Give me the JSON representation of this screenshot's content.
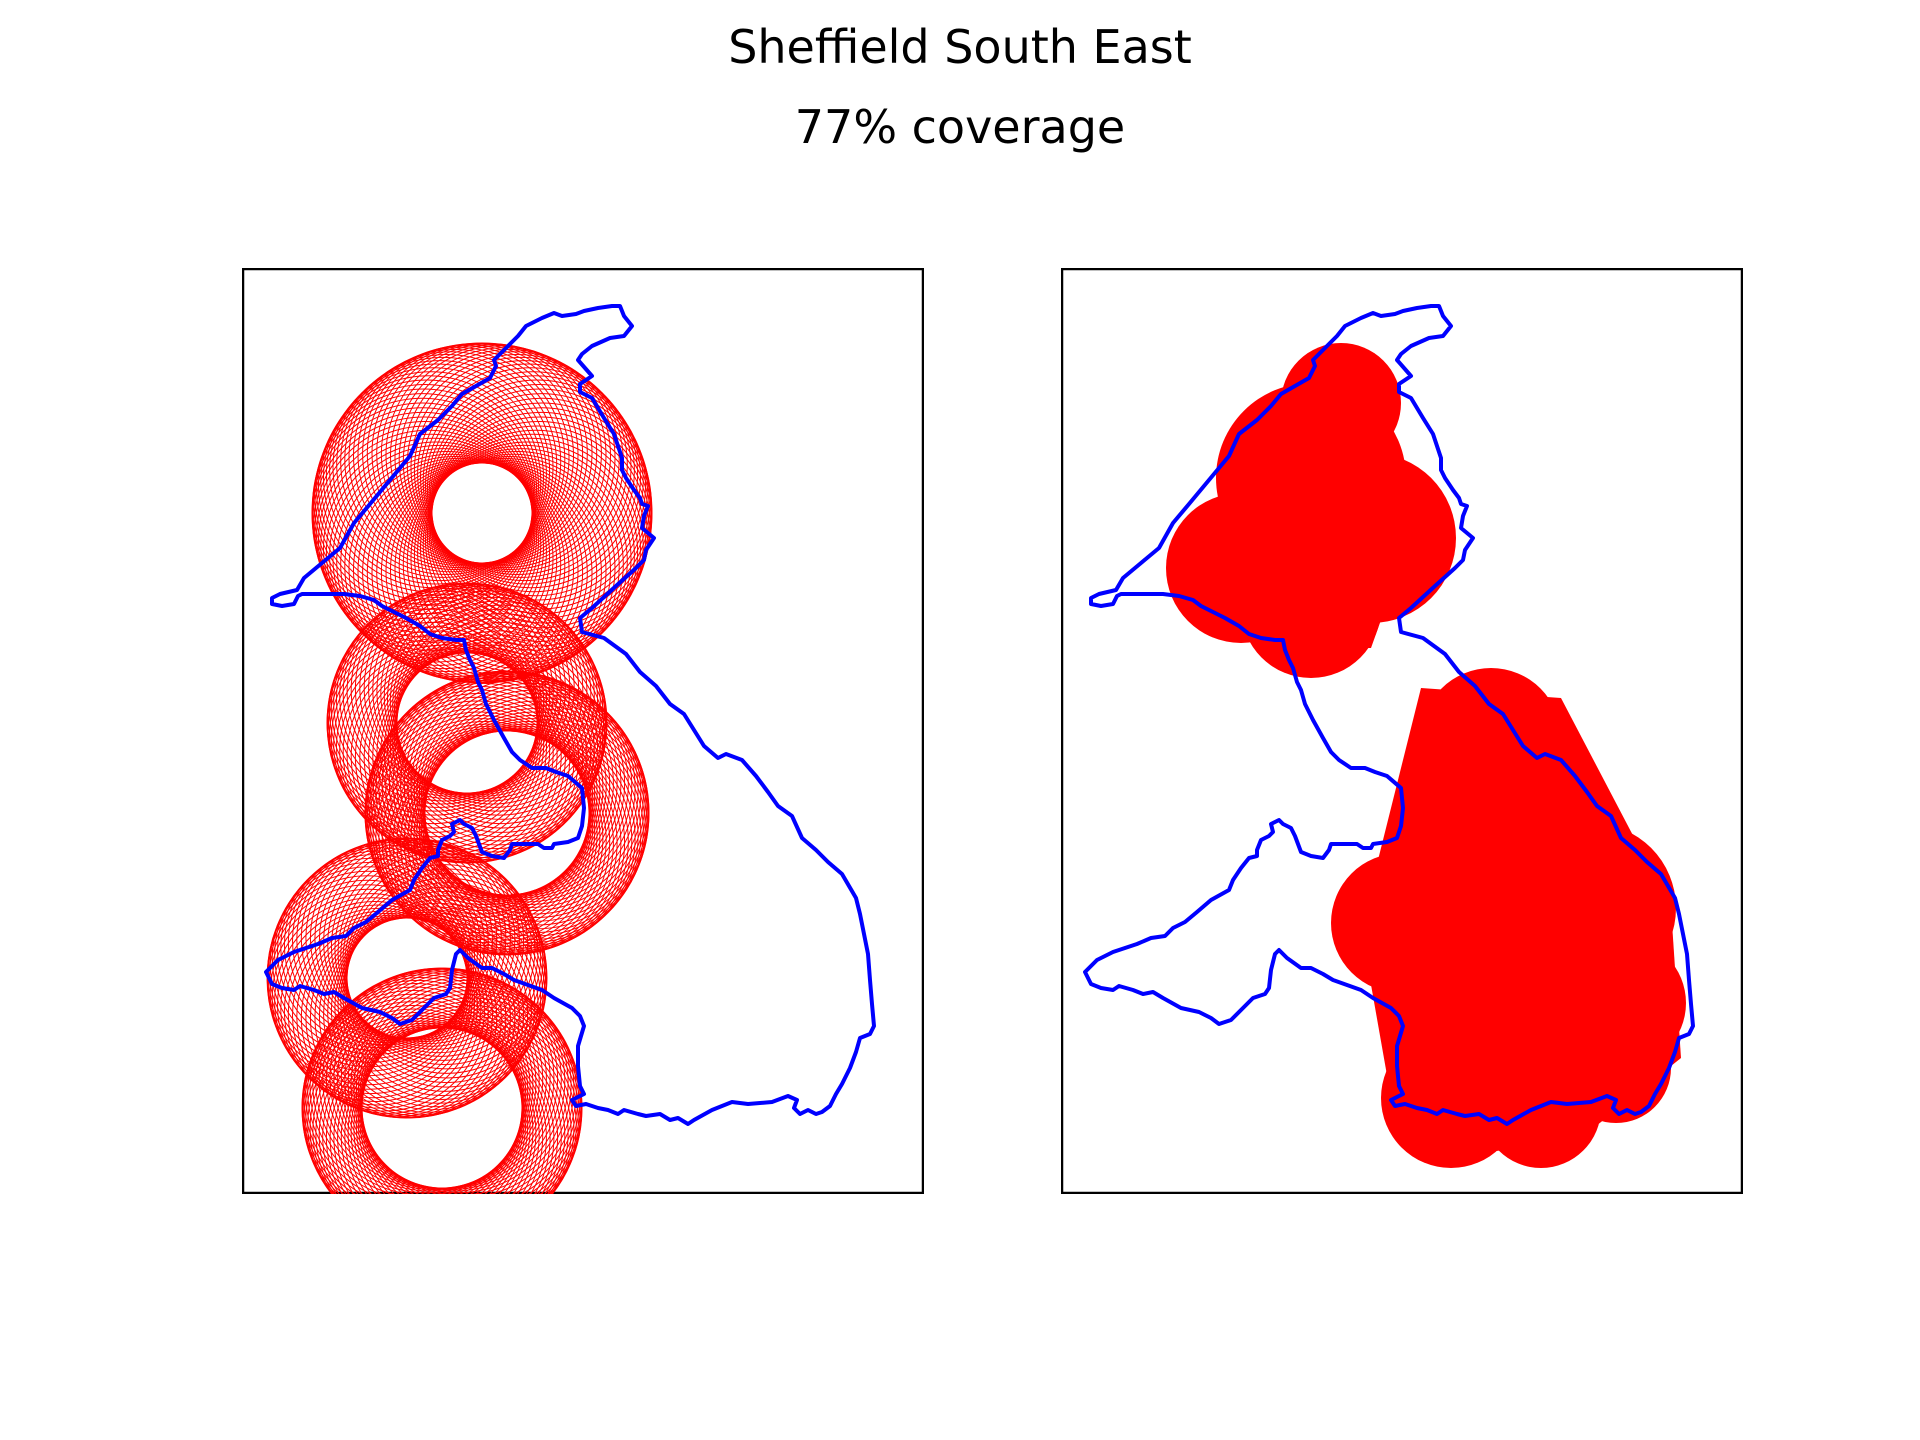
{
  "figure": {
    "title": "Sheffield South East",
    "subtitle": "77% coverage"
  },
  "colors": {
    "boundary": "#0000ff",
    "coverage": "#ff0000",
    "frame": "#000000",
    "background": "#ffffff"
  },
  "panels": [
    {
      "name": "coverage-circles-panel",
      "style": "outlined-circles"
    },
    {
      "name": "coverage-union-panel",
      "style": "filled-union"
    }
  ]
}
